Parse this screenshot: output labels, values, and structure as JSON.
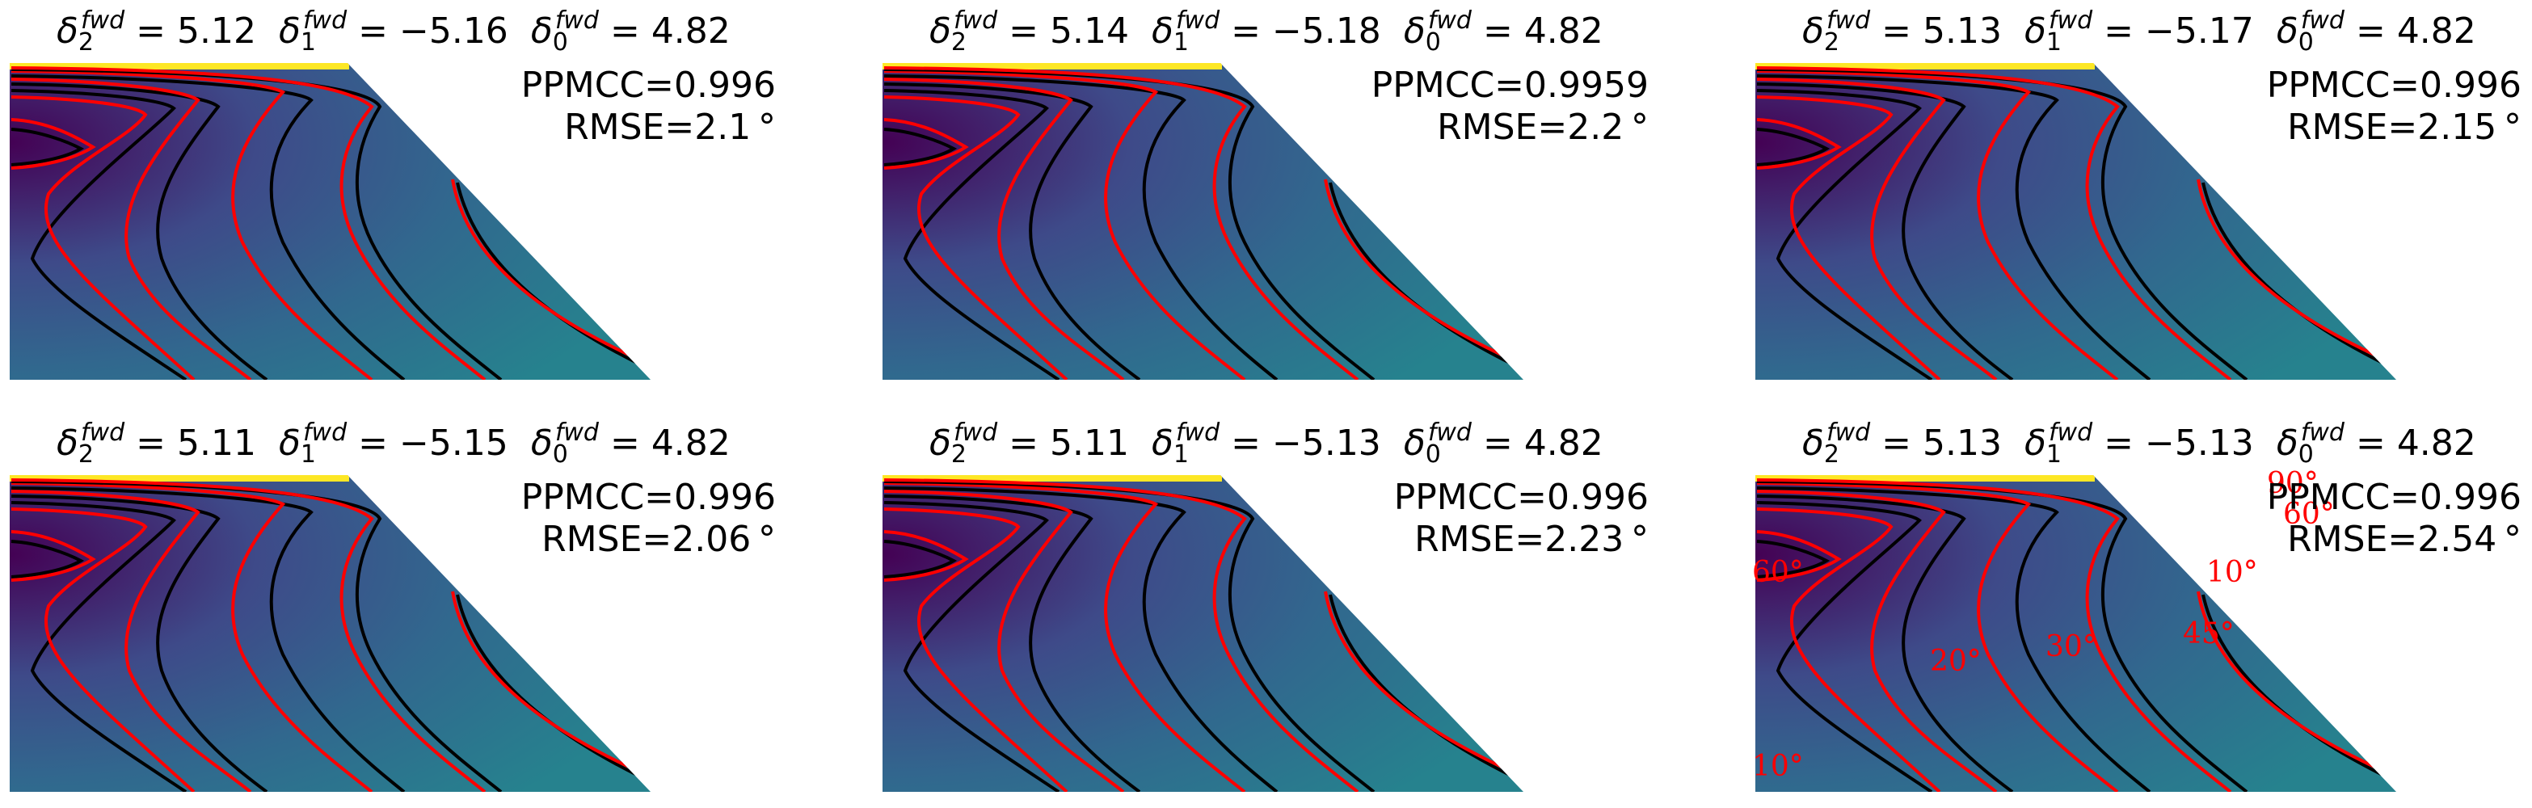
{
  "chart_data": [
    {
      "type": "contour",
      "params": {
        "d2": "5.12",
        "d1": "−5.16",
        "d0": "4.82"
      },
      "ppmcc": "PPMCC=0.996",
      "rmse": "RMSE=2.1 °",
      "contour_labels": []
    },
    {
      "type": "contour",
      "params": {
        "d2": "5.14",
        "d1": "−5.18",
        "d0": "4.82"
      },
      "ppmcc": "PPMCC=0.9959",
      "rmse": "RMSE=2.2 °",
      "contour_labels": []
    },
    {
      "type": "contour",
      "params": {
        "d2": "5.13",
        "d1": "−5.17",
        "d0": "4.82"
      },
      "ppmcc": "PPMCC=0.996",
      "rmse": "RMSE=2.15 °",
      "contour_labels": []
    },
    {
      "type": "contour",
      "params": {
        "d2": "5.11",
        "d1": "−5.15",
        "d0": "4.82"
      },
      "ppmcc": "PPMCC=0.996",
      "rmse": "RMSE=2.06 °",
      "contour_labels": []
    },
    {
      "type": "contour",
      "params": {
        "d2": "5.11",
        "d1": "−5.13",
        "d0": "4.82"
      },
      "ppmcc": "PPMCC=0.996",
      "rmse": "RMSE=2.23 °",
      "contour_labels": []
    },
    {
      "type": "contour",
      "params": {
        "d2": "5.13",
        "d1": "−5.13",
        "d0": "4.82"
      },
      "ppmcc": "PPMCC=0.996",
      "rmse": "RMSE=2.54 °",
      "contour_labels": [
        "90°",
        "60°",
        "10°",
        "60°",
        "20°",
        "30°",
        "45°",
        "10°"
      ]
    }
  ],
  "colors": {
    "fit_contour": "#ff0000",
    "reference_contour": "#000000",
    "colormap": [
      "#440154",
      "#3e4a89",
      "#31688e",
      "#26828e",
      "#1f9e89",
      "#fde725"
    ]
  }
}
